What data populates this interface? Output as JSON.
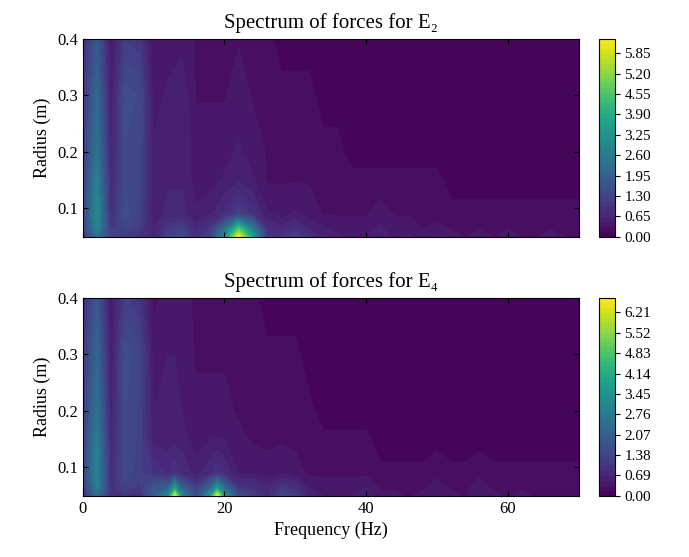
{
  "chart_data": [
    {
      "type": "contour",
      "title": "Spectrum of forces for E₂",
      "color": "viridis",
      "ylabel": "Radius (m)",
      "tick_labels": "y",
      "xlim": [
        0,
        70
      ],
      "xticks": [
        0,
        20,
        40,
        60
      ],
      "ylim": [
        0.05,
        0.4
      ],
      "yticks": [
        0.1,
        0.2,
        0.3,
        0.4
      ],
      "x": [
        0,
        2,
        4,
        6,
        8,
        10,
        12,
        14,
        16,
        18,
        20,
        22,
        24,
        26,
        28,
        30,
        32,
        34,
        36,
        38,
        40,
        42,
        44,
        46,
        48,
        50,
        52,
        54,
        56,
        58,
        60,
        62,
        64,
        66,
        68,
        70
      ],
      "y": [
        0.05,
        0.065,
        0.09,
        0.15,
        0.2,
        0.3,
        0.4
      ],
      "cells": [
        [
          0.8,
          2.2,
          1.2,
          1.0,
          0.9,
          0.6,
          1.2,
          1.4,
          0.8,
          1.2,
          3.0,
          6.3,
          3.5,
          1.0,
          0.9,
          1.2,
          0.8,
          0.6,
          0.5,
          0.4,
          0.5,
          0.6,
          0.4,
          0.5,
          0.4,
          0.5,
          0.4,
          0.3,
          0.4,
          0.3,
          0.4,
          0.3,
          0.3,
          0.4,
          0.3,
          0.3
        ],
        [
          1.0,
          2.8,
          1.0,
          1.3,
          1.1,
          0.6,
          1.0,
          1.2,
          0.7,
          1.0,
          2.2,
          4.5,
          2.5,
          0.8,
          0.7,
          0.9,
          0.6,
          0.5,
          0.4,
          0.4,
          0.4,
          0.5,
          0.4,
          0.4,
          0.3,
          0.4,
          0.3,
          0.3,
          0.3,
          0.3,
          0.3,
          0.3,
          0.3,
          0.3,
          0.3,
          0.2
        ],
        [
          1.2,
          3.0,
          0.8,
          1.5,
          1.2,
          0.5,
          0.7,
          0.7,
          0.5,
          0.6,
          0.8,
          1.2,
          0.9,
          0.5,
          0.4,
          0.5,
          0.4,
          0.3,
          0.3,
          0.3,
          0.3,
          0.4,
          0.3,
          0.3,
          0.2,
          0.2,
          0.2,
          0.2,
          0.2,
          0.2,
          0.2,
          0.2,
          0.2,
          0.2,
          0.2,
          0.2
        ],
        [
          1.1,
          2.7,
          0.7,
          1.4,
          1.3,
          0.5,
          0.6,
          0.6,
          0.4,
          0.4,
          0.5,
          0.6,
          0.5,
          0.3,
          0.3,
          0.3,
          0.3,
          0.2,
          0.2,
          0.2,
          0.2,
          0.2,
          0.2,
          0.2,
          0.2,
          0.2,
          0.1,
          0.1,
          0.1,
          0.1,
          0.1,
          0.1,
          0.1,
          0.1,
          0.1,
          0.1
        ],
        [
          1.0,
          2.4,
          0.6,
          1.4,
          1.3,
          0.5,
          0.6,
          0.6,
          0.4,
          0.4,
          0.4,
          0.5,
          0.4,
          0.3,
          0.2,
          0.2,
          0.2,
          0.2,
          0.2,
          0.1,
          0.1,
          0.1,
          0.1,
          0.1,
          0.1,
          0.1,
          0.1,
          0.1,
          0.1,
          0.1,
          0.1,
          0.1,
          0.1,
          0.1,
          0.1,
          0.1
        ],
        [
          0.9,
          2.1,
          0.5,
          1.5,
          1.4,
          0.4,
          0.5,
          0.6,
          0.3,
          0.3,
          0.3,
          0.4,
          0.3,
          0.2,
          0.2,
          0.2,
          0.2,
          0.1,
          0.1,
          0.1,
          0.1,
          0.1,
          0.1,
          0.1,
          0.1,
          0.1,
          0.1,
          0.1,
          0.1,
          0.1,
          0.1,
          0.1,
          0.1,
          0.1,
          0.1,
          0.1
        ],
        [
          0.8,
          1.7,
          0.4,
          1.1,
          1.0,
          0.3,
          0.4,
          0.4,
          0.3,
          0.2,
          0.2,
          0.3,
          0.2,
          0.2,
          0.1,
          0.1,
          0.1,
          0.1,
          0.1,
          0.1,
          0.1,
          0.1,
          0.1,
          0.1,
          0.1,
          0.1,
          0.1,
          0.1,
          0.1,
          0.1,
          0.1,
          0.1,
          0.1,
          0.1,
          0.1,
          0.1
        ]
      ],
      "colorbar_range": [
        0,
        6.3
      ],
      "colorbar_ticks": [
        {
          "value": 0,
          "label": "0.00"
        },
        0.65,
        {
          "value": 1.3,
          "label": "1.30"
        },
        1.95,
        {
          "value": 2.6,
          "label": "2.60"
        },
        3.25,
        {
          "value": 3.9,
          "label": "3.90"
        },
        4.55,
        {
          "value": 5.2,
          "label": "5.20"
        },
        5.85
      ]
    },
    {
      "type": "contour",
      "title": "Spectrum of forces for E₄",
      "color": "viridis",
      "ylabel": "Radius (m)",
      "xlabel": "Frequency (Hz)",
      "tick_labels": true,
      "xlim": [
        0,
        70
      ],
      "xticks": [
        0,
        20,
        40,
        60
      ],
      "ylim": [
        0.05,
        0.4
      ],
      "yticks": [
        0.1,
        0.2,
        0.3,
        0.4
      ],
      "x": [
        0,
        2,
        4,
        6,
        8,
        10,
        12,
        13,
        14,
        16,
        18,
        19,
        20,
        22,
        24,
        26,
        28,
        30,
        32,
        34,
        36,
        38,
        40,
        42,
        44,
        46,
        48,
        50,
        52,
        54,
        56,
        58,
        60,
        62,
        64,
        66,
        68,
        70
      ],
      "y": [
        0.05,
        0.065,
        0.09,
        0.15,
        0.2,
        0.3,
        0.4
      ],
      "cells": [
        [
          0.8,
          2.2,
          1.0,
          1.0,
          0.9,
          2.0,
          3.0,
          6.5,
          3.0,
          1.5,
          3.5,
          6.7,
          3.5,
          1.5,
          1.2,
          0.8,
          1.4,
          1.2,
          0.6,
          0.5,
          0.4,
          0.5,
          0.6,
          0.4,
          0.4,
          0.3,
          0.4,
          0.5,
          0.4,
          0.3,
          0.5,
          0.4,
          0.3,
          0.4,
          0.3,
          0.3,
          0.3,
          0.3
        ],
        [
          1.0,
          2.8,
          0.9,
          1.3,
          1.1,
          1.8,
          2.0,
          3.5,
          2.0,
          1.2,
          2.2,
          3.5,
          2.2,
          1.0,
          0.9,
          0.7,
          1.0,
          0.9,
          0.5,
          0.4,
          0.4,
          0.4,
          0.5,
          0.3,
          0.3,
          0.3,
          0.3,
          0.4,
          0.3,
          0.3,
          0.4,
          0.3,
          0.3,
          0.3,
          0.3,
          0.3,
          0.2,
          0.2
        ],
        [
          1.3,
          3.0,
          0.8,
          1.5,
          1.2,
          1.0,
          0.8,
          1.0,
          0.8,
          0.6,
          0.8,
          1.0,
          0.8,
          0.5,
          0.5,
          0.4,
          0.5,
          0.4,
          0.3,
          0.3,
          0.3,
          0.3,
          0.3,
          0.2,
          0.2,
          0.2,
          0.2,
          0.3,
          0.2,
          0.2,
          0.3,
          0.2,
          0.2,
          0.2,
          0.2,
          0.2,
          0.2,
          0.2
        ],
        [
          1.2,
          2.8,
          0.7,
          1.5,
          1.3,
          0.6,
          0.6,
          0.6,
          0.6,
          0.4,
          0.5,
          0.5,
          0.5,
          0.4,
          0.3,
          0.3,
          0.3,
          0.3,
          0.2,
          0.2,
          0.2,
          0.2,
          0.2,
          0.1,
          0.1,
          0.1,
          0.1,
          0.1,
          0.1,
          0.1,
          0.1,
          0.1,
          0.1,
          0.1,
          0.1,
          0.1,
          0.1,
          0.1
        ],
        [
          1.1,
          2.5,
          0.6,
          1.5,
          1.3,
          0.5,
          0.6,
          0.6,
          0.5,
          0.4,
          0.4,
          0.4,
          0.4,
          0.3,
          0.3,
          0.2,
          0.2,
          0.2,
          0.2,
          0.1,
          0.1,
          0.1,
          0.1,
          0.1,
          0.1,
          0.1,
          0.1,
          0.1,
          0.1,
          0.1,
          0.1,
          0.1,
          0.1,
          0.1,
          0.1,
          0.1,
          0.1,
          0.1
        ],
        [
          1.0,
          2.2,
          0.5,
          1.6,
          1.4,
          0.4,
          0.5,
          0.5,
          0.5,
          0.3,
          0.3,
          0.3,
          0.3,
          0.3,
          0.2,
          0.2,
          0.2,
          0.2,
          0.1,
          0.1,
          0.1,
          0.1,
          0.1,
          0.1,
          0.1,
          0.1,
          0.1,
          0.1,
          0.1,
          0.1,
          0.1,
          0.1,
          0.1,
          0.1,
          0.1,
          0.1,
          0.1,
          0.1
        ],
        [
          0.8,
          1.8,
          0.4,
          1.2,
          1.0,
          0.3,
          0.4,
          0.4,
          0.4,
          0.3,
          0.2,
          0.2,
          0.2,
          0.2,
          0.2,
          0.1,
          0.1,
          0.1,
          0.1,
          0.1,
          0.1,
          0.1,
          0.1,
          0.1,
          0.1,
          0.1,
          0.1,
          0.1,
          0.1,
          0.1,
          0.1,
          0.1,
          0.1,
          0.1,
          0.1,
          0.1,
          0.1,
          0.1
        ]
      ],
      "colorbar_range": [
        0,
        6.7
      ],
      "colorbar_ticks": [
        {
          "value": 0,
          "label": "0.00"
        },
        0.69,
        1.38,
        2.07,
        2.76,
        3.45,
        4.14,
        4.83,
        5.52,
        6.21
      ]
    }
  ]
}
